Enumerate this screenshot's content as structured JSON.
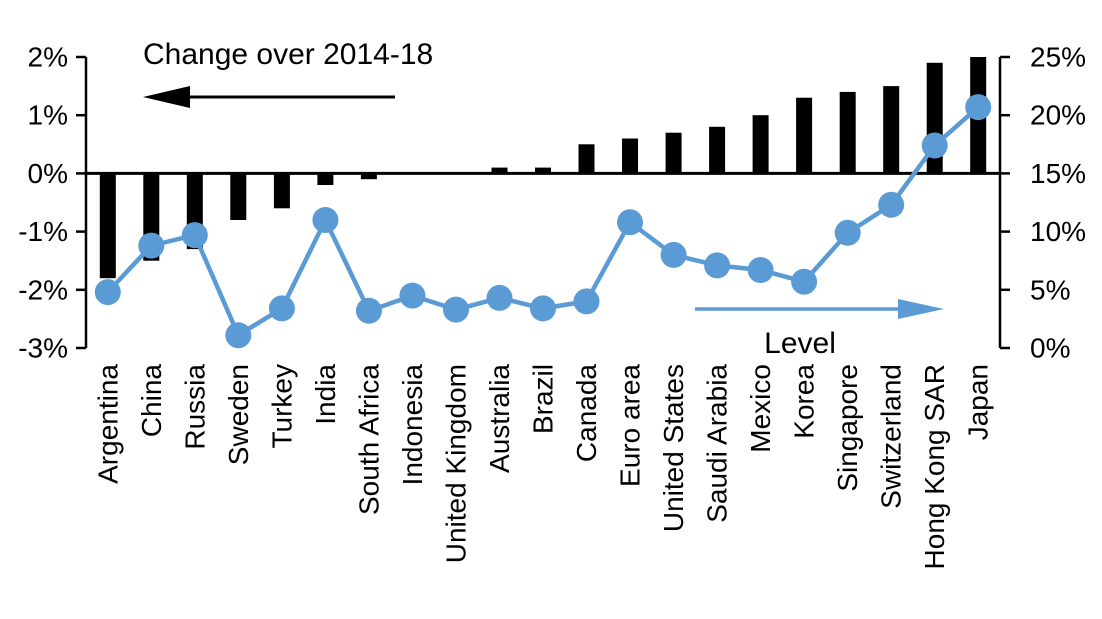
{
  "chart_data": {
    "type": "combo-bar-line",
    "categories": [
      "Argentina",
      "China",
      "Russia",
      "Sweden",
      "Turkey",
      "India",
      "South Africa",
      "Indonesia",
      "United Kingdom",
      "Australia",
      "Brazil",
      "Canada",
      "Euro area",
      "United States",
      "Saudi Arabia",
      "Mexico",
      "Korea",
      "Singapore",
      "Switzerland",
      "Hong Kong SAR",
      "Japan"
    ],
    "series": [
      {
        "name": "Change over 2014-18",
        "type": "bar",
        "axis": "left",
        "color": "#000000",
        "values": [
          -1.8,
          -1.5,
          -1.3,
          -0.8,
          -0.6,
          -0.2,
          -0.1,
          0,
          0,
          0.1,
          0.1,
          0.5,
          0.6,
          0.7,
          0.8,
          1.0,
          1.3,
          1.4,
          1.5,
          1.9,
          2.0
        ]
      },
      {
        "name": "Level",
        "type": "line",
        "axis": "right",
        "color": "#5B9BD5",
        "values": [
          4.8,
          8.8,
          9.7,
          1.1,
          3.4,
          11.0,
          3.2,
          4.5,
          3.3,
          4.3,
          3.4,
          4.0,
          10.8,
          8.0,
          7.1,
          6.7,
          5.7,
          9.9,
          12.3,
          17.4,
          20.7
        ]
      }
    ],
    "left_axis": {
      "tick_labels": [
        "2%",
        "1%",
        "0%",
        "-1%",
        "-2%",
        "-3%"
      ],
      "tick_values": [
        2,
        1,
        0,
        -1,
        -2,
        -3
      ],
      "range": [
        -3,
        2
      ]
    },
    "right_axis": {
      "tick_labels": [
        "25%",
        "20%",
        "15%",
        "10%",
        "5%",
        "0%"
      ],
      "tick_values": [
        25,
        20,
        15,
        10,
        5,
        0
      ],
      "range": [
        0,
        25
      ]
    },
    "zero_line": true,
    "grid": "none",
    "legend_position": "none",
    "annotations": {
      "change": {
        "label": "Change over 2014-18",
        "arrow_direction": "left",
        "color": "#000000"
      },
      "level": {
        "label": "Level",
        "arrow_direction": "right",
        "color": "#5B9BD5"
      }
    }
  },
  "colors": {
    "bar": "#000000",
    "line": "#5B9BD5",
    "background": "#FFFFFF",
    "text": "#000000"
  }
}
